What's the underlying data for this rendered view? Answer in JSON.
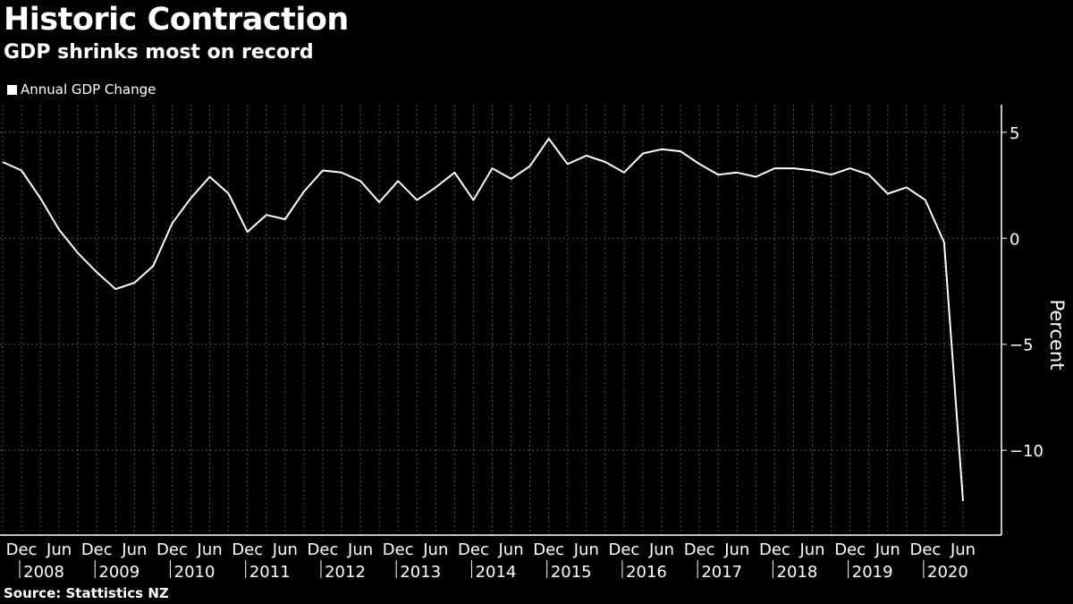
{
  "title": "Historic Contraction",
  "subtitle": "GDP shrinks most on record",
  "source": "Source:  Stattistics NZ",
  "chart_data": {
    "type": "line",
    "title": "Historic Contraction",
    "subtitle": "GDP shrinks most on record",
    "ylabel": "Percent",
    "ylim": [
      -14,
      6.3
    ],
    "yticks": [
      5,
      0,
      -5,
      -10
    ],
    "grid": true,
    "legend_position": "top-left",
    "colors": {
      "background": "#000000",
      "line": "#ffffff",
      "grid": "#555555"
    },
    "x_period_labels": [
      "Dec",
      "Jun",
      "Dec",
      "Jun",
      "Dec",
      "Jun",
      "Dec",
      "Jun",
      "Dec",
      "Jun",
      "Dec",
      "Jun",
      "Dec",
      "Jun",
      "Dec",
      "Jun",
      "Dec",
      "Jun",
      "Dec",
      "Jun",
      "Dec",
      "Jun",
      "Dec",
      "Jun",
      "Dec",
      "Jun"
    ],
    "x_year_labels": [
      "2008",
      "2009",
      "2010",
      "2011",
      "2012",
      "2013",
      "2014",
      "2015",
      "2016",
      "2017",
      "2018",
      "2019",
      "2020"
    ],
    "x": [
      "Sep 2007",
      "Dec 2007",
      "Mar 2008",
      "Jun 2008",
      "Sep 2008",
      "Dec 2008",
      "Mar 2009",
      "Jun 2009",
      "Sep 2009",
      "Dec 2009",
      "Mar 2010",
      "Jun 2010",
      "Sep 2010",
      "Dec 2010",
      "Mar 2011",
      "Jun 2011",
      "Sep 2011",
      "Dec 2011",
      "Mar 2012",
      "Jun 2012",
      "Sep 2012",
      "Dec 2012",
      "Mar 2013",
      "Jun 2013",
      "Sep 2013",
      "Dec 2013",
      "Mar 2014",
      "Jun 2014",
      "Sep 2014",
      "Dec 2014",
      "Mar 2015",
      "Jun 2015",
      "Sep 2015",
      "Dec 2015",
      "Mar 2016",
      "Jun 2016",
      "Sep 2016",
      "Dec 2016",
      "Mar 2017",
      "Jun 2017",
      "Sep 2017",
      "Dec 2017",
      "Mar 2018",
      "Jun 2018",
      "Sep 2018",
      "Dec 2018",
      "Mar 2019",
      "Jun 2019",
      "Sep 2019",
      "Dec 2019",
      "Mar 2020",
      "Jun 2020"
    ],
    "series": [
      {
        "name": "Annual GDP Change",
        "values": [
          3.6,
          3.2,
          1.9,
          0.4,
          -0.7,
          -1.6,
          -2.4,
          -2.1,
          -1.3,
          0.7,
          1.9,
          2.9,
          2.1,
          0.3,
          1.1,
          0.9,
          2.2,
          3.2,
          3.1,
          2.7,
          1.7,
          2.7,
          1.8,
          2.4,
          3.1,
          1.8,
          3.3,
          2.8,
          3.4,
          4.7,
          3.5,
          3.9,
          3.6,
          3.1,
          4.0,
          4.2,
          4.1,
          3.5,
          3.0,
          3.1,
          2.9,
          3.3,
          3.3,
          3.2,
          3.0,
          3.3,
          3.0,
          2.1,
          2.4,
          1.8,
          -0.2,
          -12.4
        ]
      }
    ]
  }
}
